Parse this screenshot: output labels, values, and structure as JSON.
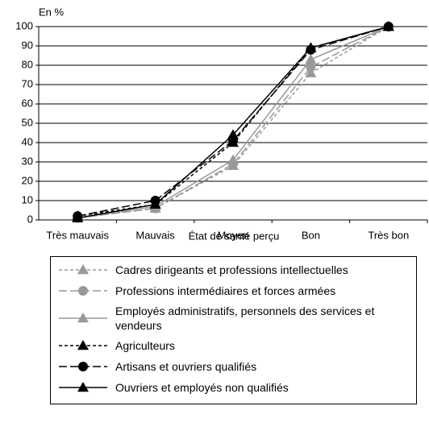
{
  "chart_data": {
    "type": "line",
    "y_label": "En %",
    "x_label": "État de santé perçu",
    "categories": [
      "Très mauvais",
      "Mauvais",
      "Moyen",
      "Bon",
      "Très bon"
    ],
    "ylim": [
      0,
      100
    ],
    "yticks": [
      0,
      10,
      20,
      30,
      40,
      50,
      60,
      70,
      80,
      90,
      100
    ],
    "grid": true,
    "series": [
      {
        "name": "Cadres dirigeants et professions intellectuelles",
        "color": "#999999",
        "dash": "dashed",
        "marker": "triangle",
        "values": [
          1,
          6,
          28,
          76,
          100
        ]
      },
      {
        "name": "Professions intermédiaires et forces armées",
        "color": "#999999",
        "dash": "longdash",
        "marker": "circle",
        "values": [
          1,
          6,
          29,
          79,
          100
        ]
      },
      {
        "name": "Employés administratifs, personnels des services et vendeurs",
        "color": "#999999",
        "dash": "solid",
        "marker": "triangle",
        "values": [
          1,
          7,
          31,
          83,
          100
        ]
      },
      {
        "name": "Agriculteurs",
        "color": "#000000",
        "dash": "dashed",
        "marker": "triangle",
        "values": [
          2,
          8,
          40,
          89,
          100
        ]
      },
      {
        "name": "Artisans et ouvriers qualifiés",
        "color": "#000000",
        "dash": "longdash",
        "marker": "circle",
        "values": [
          2,
          10,
          41,
          88,
          100
        ]
      },
      {
        "name": "Ouvriers et employés non qualifiés",
        "color": "#000000",
        "dash": "solid",
        "marker": "triangle",
        "values": [
          1,
          8,
          44,
          89,
          100
        ]
      }
    ]
  }
}
